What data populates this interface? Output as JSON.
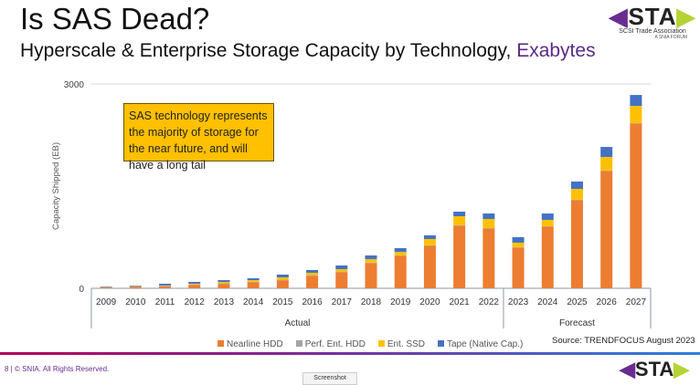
{
  "slide": {
    "title": "Is SAS Dead?",
    "subtitle": "Hyperscale & Enterprise Storage Capacity by Technology,",
    "subtitle_unit": "Exabytes",
    "callout": "SAS technology represents the majority of storage for the near future, and will have a long tail",
    "source": "Source: TRENDFOCUS August 2023",
    "footer": "8 | © SNIA. All Rights Reserved.",
    "logo": {
      "text": "STA",
      "org": "SCSI Trade Association",
      "forum": "A SNIA FORUM"
    },
    "tab_label": "Screenshot"
  },
  "chart_data": {
    "type": "bar",
    "stacked": true,
    "ylabel": "Capacity Shipped (EB)",
    "ylim": [
      0,
      3000
    ],
    "yticks": [
      "0",
      "3000"
    ],
    "grid": true,
    "legend_placement": "bottom",
    "categories": [
      "2009",
      "2010",
      "2011",
      "2012",
      "2013",
      "2014",
      "2015",
      "2016",
      "2017",
      "2018",
      "2019",
      "2020",
      "2021",
      "2022",
      "2023",
      "2024",
      "2025",
      "2026",
      "2027"
    ],
    "groups": [
      {
        "label": "Actual",
        "from": "2009",
        "to": "2022"
      },
      {
        "label": "Forecast",
        "from": "2023",
        "to": "2027"
      }
    ],
    "series": [
      {
        "name": "Nearline HDD",
        "color": "#ed7d31",
        "values": [
          12,
          20,
          27,
          50,
          65,
          90,
          118,
          185,
          238,
          370,
          478,
          625,
          920,
          880,
          600,
          906,
          1296,
          1723,
          2420
        ]
      },
      {
        "name": "Perf. Ent. HDD",
        "color": "#a5a5a5",
        "values": [
          8,
          10,
          10,
          8,
          8,
          8,
          8,
          8,
          8,
          8,
          8,
          8,
          8,
          8,
          6,
          6,
          6,
          6,
          6
        ]
      },
      {
        "name": "Ent. SSD",
        "color": "#ffc000",
        "values": [
          2,
          3,
          5,
          10,
          20,
          22,
          35,
          35,
          35,
          50,
          50,
          90,
          130,
          130,
          64,
          92,
          158,
          199,
          252
        ]
      },
      {
        "name": "Tape (Native Cap.)",
        "color": "#4472c4",
        "values": [
          5,
          7,
          25,
          26,
          27,
          27,
          40,
          40,
          54,
          54,
          53,
          54,
          67,
          80,
          80,
          94,
          107,
          147,
          160
        ]
      }
    ]
  }
}
